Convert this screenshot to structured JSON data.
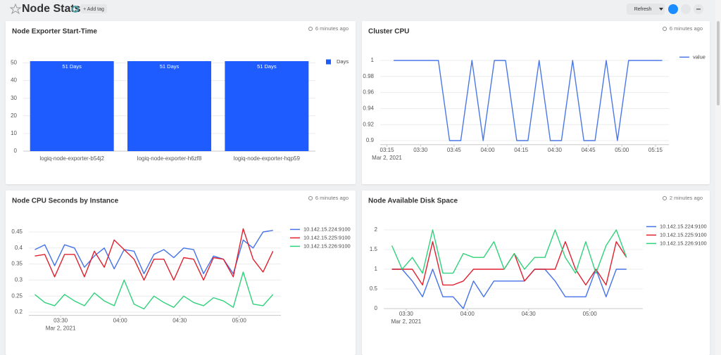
{
  "header": {
    "title": "Node Stats",
    "add_tag": "+ Add tag",
    "refresh": "Refresh"
  },
  "chart_data": [
    {
      "type": "bar",
      "title": "Node Exporter Start-Time",
      "updated": "6 minutes ago",
      "categories": [
        "logiq-node-exporter-b54j2",
        "logiq-node-exporter-h6zf8",
        "logiq-node-exporter-hqp59"
      ],
      "series": [
        {
          "name": "Days",
          "color": "#1f5cff",
          "values": [
            51,
            51,
            51
          ],
          "value_labels": [
            "51 Days",
            "51 Days",
            "51 Days"
          ]
        }
      ],
      "ylim": [
        0,
        51
      ],
      "yticks": [
        0,
        10,
        20,
        30,
        40,
        50
      ],
      "grid": true,
      "legend": "right"
    },
    {
      "type": "line",
      "title": "Cluster CPU",
      "updated": "6 minutes ago",
      "x": [
        "2021-03-02T03:18",
        "2021-03-02T03:23",
        "2021-03-02T03:28",
        "2021-03-02T03:33",
        "2021-03-02T03:38",
        "2021-03-02T03:43",
        "2021-03-02T03:48",
        "2021-03-02T03:53",
        "2021-03-02T03:58",
        "2021-03-02T04:03",
        "2021-03-02T04:08",
        "2021-03-02T04:13",
        "2021-03-02T04:18",
        "2021-03-02T04:23",
        "2021-03-02T04:28",
        "2021-03-02T04:33",
        "2021-03-02T04:38",
        "2021-03-02T04:43",
        "2021-03-02T04:48",
        "2021-03-02T04:53",
        "2021-03-02T04:58",
        "2021-03-02T05:03",
        "2021-03-02T05:08",
        "2021-03-02T05:13",
        "2021-03-02T05:18"
      ],
      "series": [
        {
          "name": "value",
          "color": "#4a78e8",
          "values": [
            1,
            1,
            1,
            1,
            1,
            0.9,
            0.9,
            1,
            0.9,
            1,
            1,
            0.9,
            0.9,
            1,
            0.9,
            0.9,
            1,
            0.9,
            0.9,
            1,
            0.9,
            1,
            1,
            1,
            1
          ]
        }
      ],
      "xlim": [
        "2021-03-02T03:12",
        "2021-03-02T05:21"
      ],
      "xticks": [
        {
          "value": "2021-03-02T03:15",
          "label": "03:15"
        },
        {
          "value": "2021-03-02T03:30",
          "label": "03:30"
        },
        {
          "value": "2021-03-02T03:45",
          "label": "03:45"
        },
        {
          "value": "2021-03-02T04:00",
          "label": "04:00"
        },
        {
          "value": "2021-03-02T04:15",
          "label": "04:15"
        },
        {
          "value": "2021-03-02T04:30",
          "label": "04:30"
        },
        {
          "value": "2021-03-02T04:45",
          "label": "04:45"
        },
        {
          "value": "2021-03-02T05:00",
          "label": "05:00"
        },
        {
          "value": "2021-03-02T05:15",
          "label": "05:15"
        }
      ],
      "x_date_label": "Mar 2, 2021",
      "ylim": [
        0.895,
        1.005
      ],
      "yticks": [
        0.9,
        0.92,
        0.94,
        0.96,
        0.98,
        1
      ],
      "grid": true,
      "legend": "right"
    },
    {
      "type": "line",
      "title": "Node CPU Seconds by Instance",
      "updated": "6 minutes ago",
      "x": [
        "2021-03-02T03:17",
        "2021-03-02T03:22",
        "2021-03-02T03:27",
        "2021-03-02T03:32",
        "2021-03-02T03:37",
        "2021-03-02T03:42",
        "2021-03-02T03:47",
        "2021-03-02T03:52",
        "2021-03-02T03:57",
        "2021-03-02T04:02",
        "2021-03-02T04:07",
        "2021-03-02T04:12",
        "2021-03-02T04:17",
        "2021-03-02T04:22",
        "2021-03-02T04:27",
        "2021-03-02T04:32",
        "2021-03-02T04:37",
        "2021-03-02T04:42",
        "2021-03-02T04:47",
        "2021-03-02T04:52",
        "2021-03-02T04:57",
        "2021-03-02T05:02",
        "2021-03-02T05:07",
        "2021-03-02T05:12",
        "2021-03-02T05:17"
      ],
      "series": [
        {
          "name": "10.142.15.224:9100",
          "color": "#4472e8",
          "values": [
            0.395,
            0.41,
            0.345,
            0.41,
            0.4,
            0.34,
            0.375,
            0.4,
            0.335,
            0.395,
            0.39,
            0.32,
            0.38,
            0.395,
            0.37,
            0.4,
            0.395,
            0.32,
            0.375,
            0.365,
            0.32,
            0.425,
            0.4,
            0.45,
            0.455
          ]
        },
        {
          "name": "10.142.15.225:9100",
          "color": "#e0202e",
          "values": [
            0.375,
            0.38,
            0.31,
            0.38,
            0.38,
            0.31,
            0.39,
            0.34,
            0.425,
            0.395,
            0.365,
            0.3,
            0.365,
            0.365,
            0.3,
            0.37,
            0.365,
            0.3,
            0.37,
            0.365,
            0.31,
            0.46,
            0.365,
            0.325,
            0.39
          ]
        },
        {
          "name": "10.142.15.226:9100",
          "color": "#2fd27a",
          "values": [
            0.255,
            0.23,
            0.22,
            0.255,
            0.235,
            0.22,
            0.26,
            0.235,
            0.22,
            0.3,
            0.225,
            0.21,
            0.25,
            0.23,
            0.215,
            0.25,
            0.23,
            0.22,
            0.245,
            0.235,
            0.215,
            0.325,
            0.225,
            0.22,
            0.255
          ]
        }
      ],
      "xlim": [
        "2021-03-02T03:14",
        "2021-03-02T05:21"
      ],
      "xticks": [
        {
          "value": "2021-03-02T03:30",
          "label": "03:30"
        },
        {
          "value": "2021-03-02T04:00",
          "label": "04:00"
        },
        {
          "value": "2021-03-02T04:30",
          "label": "04:30"
        },
        {
          "value": "2021-03-02T05:00",
          "label": "05:00"
        }
      ],
      "x_date_label": "Mar 2, 2021",
      "ylim": [
        0.19,
        0.46
      ],
      "yticks": [
        0.2,
        0.25,
        0.3,
        0.35,
        0.4,
        0.45
      ],
      "grid": true,
      "legend": "right"
    },
    {
      "type": "line",
      "title": "Node Available Disk Space",
      "updated": "2 minutes ago",
      "x": [
        "2021-03-02T03:23",
        "2021-03-02T03:28",
        "2021-03-02T03:33",
        "2021-03-02T03:38",
        "2021-03-02T03:43",
        "2021-03-02T03:48",
        "2021-03-02T03:53",
        "2021-03-02T03:58",
        "2021-03-02T04:03",
        "2021-03-02T04:08",
        "2021-03-02T04:13",
        "2021-03-02T04:18",
        "2021-03-02T04:23",
        "2021-03-02T04:28",
        "2021-03-02T04:33",
        "2021-03-02T04:38",
        "2021-03-02T04:43",
        "2021-03-02T04:48",
        "2021-03-02T04:53",
        "2021-03-02T04:58",
        "2021-03-02T05:03",
        "2021-03-02T05:08",
        "2021-03-02T05:13",
        "2021-03-02T05:18"
      ],
      "series": [
        {
          "name": "10.142.15.224:9100",
          "color": "#4472e8",
          "values": [
            1,
            1,
            0.7,
            0.3,
            1,
            0.3,
            0.3,
            0,
            0.7,
            0.3,
            0.7,
            0.7,
            0.7,
            0.7,
            1,
            1,
            0.7,
            0.3,
            0.3,
            0.3,
            1,
            0.3,
            1,
            1
          ]
        },
        {
          "name": "10.142.15.225:9100",
          "color": "#e0202e",
          "values": [
            1,
            1,
            1,
            0.6,
            1.7,
            0.6,
            0.6,
            0.7,
            1,
            1,
            1,
            1,
            1.4,
            0.7,
            1,
            1,
            1,
            1.7,
            1,
            0.6,
            1,
            0.6,
            1.7,
            1.3
          ]
        },
        {
          "name": "10.142.15.226:9100",
          "color": "#2fd27a",
          "values": [
            1.6,
            1,
            1.3,
            0.9,
            2,
            0.9,
            0.9,
            1.4,
            1.3,
            1.3,
            1.7,
            1,
            1.4,
            1,
            1.3,
            1.3,
            2,
            1.3,
            0.9,
            1.7,
            0.9,
            1.6,
            2,
            1.3
          ]
        }
      ],
      "xlim": [
        "2021-03-02T03:19",
        "2021-03-02T05:26"
      ],
      "xticks": [
        {
          "value": "2021-03-02T03:30",
          "label": "03:30"
        },
        {
          "value": "2021-03-02T04:00",
          "label": "04:00"
        },
        {
          "value": "2021-03-02T04:30",
          "label": "04:30"
        },
        {
          "value": "2021-03-02T05:00",
          "label": "05:00"
        }
      ],
      "x_date_label": "Mar 2, 2021",
      "ylim": [
        0,
        2.1
      ],
      "yticks": [
        0,
        0.5,
        1,
        1.5,
        2
      ],
      "grid": true,
      "legend": "right"
    }
  ]
}
